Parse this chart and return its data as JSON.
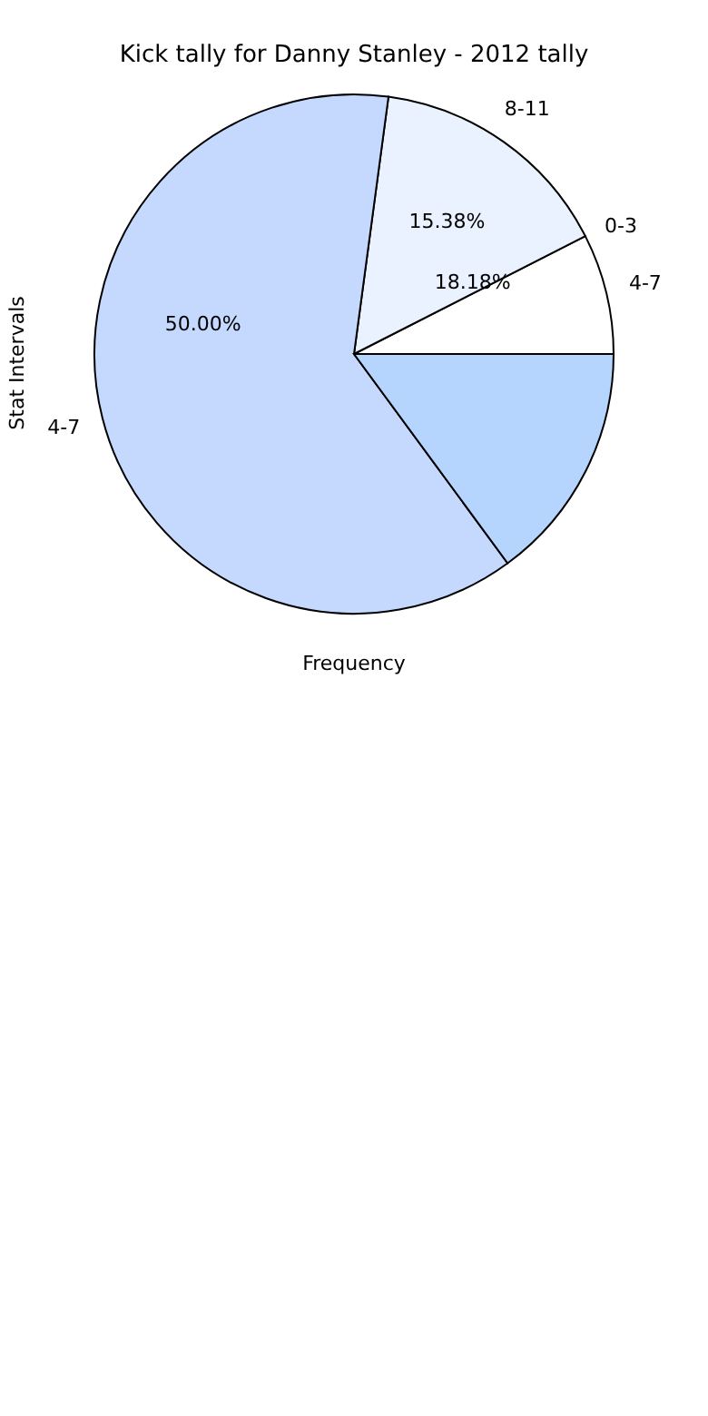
{
  "chart_data": {
    "type": "pie",
    "title": "Kick tally for Danny Stanley - 2012 tally",
    "xlabel": "Frequency",
    "ylabel": "Stat Intervals",
    "categories": [
      "4-7",
      "8-11",
      "4-7",
      null
    ],
    "values": [
      7.5,
      15.38,
      62.2,
      14.92
    ],
    "colors": [
      "#ffffff",
      "#eaf2ff",
      "#c5d9ff",
      "#b5d5ff"
    ],
    "value_labels": [
      null,
      "15.38%",
      null,
      null
    ],
    "annotations": [
      "0-3",
      "18.18%",
      "50.00%"
    ]
  }
}
